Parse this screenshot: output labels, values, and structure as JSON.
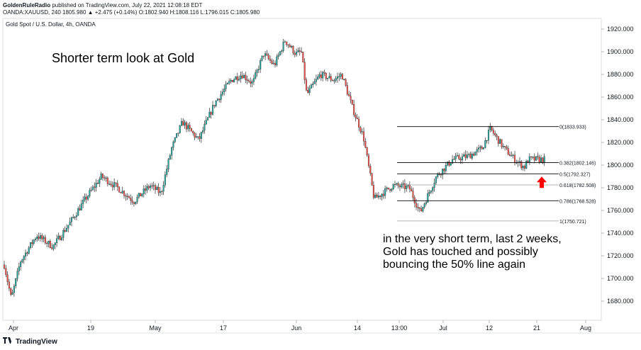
{
  "header": {
    "publisher": "GoldenRuleRadio",
    "published_text": "published on TradingView.com, July 22, 2021 12:08:18 EDT",
    "symbol_line": "OANDA:XAUUSD, 240 1805.980 ▲ +2.475 (+0.14%) O:1802.940 H:1808.116 L:1796.015 C:1805.980"
  },
  "symbol_label": "Gold Spot / U.S. Dollar, 4h, OANDA",
  "annotations": {
    "title": "Shorter term look at Gold",
    "body_lines": [
      "in the very short term, last 2 weeks,",
      "Gold has touched and possibly",
      "bouncing the 50% line again"
    ]
  },
  "footer": {
    "brand": "TradingView",
    "logo_icon": "tradingview-logo-icon"
  },
  "colors": {
    "up": "#26a69a",
    "down": "#ef5350",
    "candle": "#2b2b2b",
    "arrow": "#ff0000",
    "fib_line": "#000000"
  },
  "chart_data": {
    "type": "candlestick",
    "instrument": "OANDA:XAUUSD",
    "timeframe": "4h",
    "ylim": [
      1670,
      1925
    ],
    "y_ticks": [
      "1920.000",
      "1900.000",
      "1880.000",
      "1860.000",
      "1840.000",
      "1820.000",
      "1800.000",
      "1780.000",
      "1760.000",
      "1740.000",
      "1720.000",
      "1700.000",
      "1680.000"
    ],
    "x_ticks": [
      "Apr",
      "19",
      "May",
      "17",
      "Jun",
      "14",
      "13:00",
      "Jul",
      "12",
      "21",
      "Aug"
    ],
    "price_path": [
      [
        0,
        1712
      ],
      [
        0.013,
        1682
      ],
      [
        0.03,
        1715
      ],
      [
        0.06,
        1738
      ],
      [
        0.09,
        1728
      ],
      [
        0.12,
        1748
      ],
      [
        0.15,
        1770
      ],
      [
        0.18,
        1790
      ],
      [
        0.21,
        1780
      ],
      [
        0.24,
        1768
      ],
      [
        0.27,
        1782
      ],
      [
        0.29,
        1775
      ],
      [
        0.31,
        1815
      ],
      [
        0.33,
        1838
      ],
      [
        0.36,
        1822
      ],
      [
        0.39,
        1855
      ],
      [
        0.42,
        1875
      ],
      [
        0.44,
        1880
      ],
      [
        0.46,
        1872
      ],
      [
        0.48,
        1898
      ],
      [
        0.5,
        1888
      ],
      [
        0.52,
        1910
      ],
      [
        0.54,
        1898
      ],
      [
        0.55,
        1900
      ],
      [
        0.56,
        1862
      ],
      [
        0.585,
        1880
      ],
      [
        0.61,
        1875
      ],
      [
        0.625,
        1880
      ],
      [
        0.645,
        1850
      ],
      [
        0.665,
        1825
      ],
      [
        0.685,
        1770
      ],
      [
        0.72,
        1782
      ],
      [
        0.75,
        1780
      ],
      [
        0.77,
        1758
      ],
      [
        0.8,
        1790
      ],
      [
        0.83,
        1805
      ],
      [
        0.86,
        1808
      ],
      [
        0.885,
        1815
      ],
      [
        0.9,
        1832
      ],
      [
        0.925,
        1815
      ],
      [
        0.945,
        1805
      ],
      [
        0.963,
        1798
      ],
      [
        0.97,
        1805
      ]
    ],
    "fibonacci_levels": [
      {
        "label": "0(1833.933)",
        "price": 1833.933
      },
      {
        "label": "0.382(1802.146)",
        "price": 1802.146
      },
      {
        "label": "0.5(1792.327)",
        "price": 1792.327
      },
      {
        "label": "0.618(1782.508)",
        "price": 1782.508
      },
      {
        "label": "0.786(1768.528)",
        "price": 1768.528
      },
      {
        "label": "1(1750.721)",
        "price": 1750.721
      }
    ],
    "marker": {
      "type": "up-arrow",
      "price": 1783
    }
  }
}
